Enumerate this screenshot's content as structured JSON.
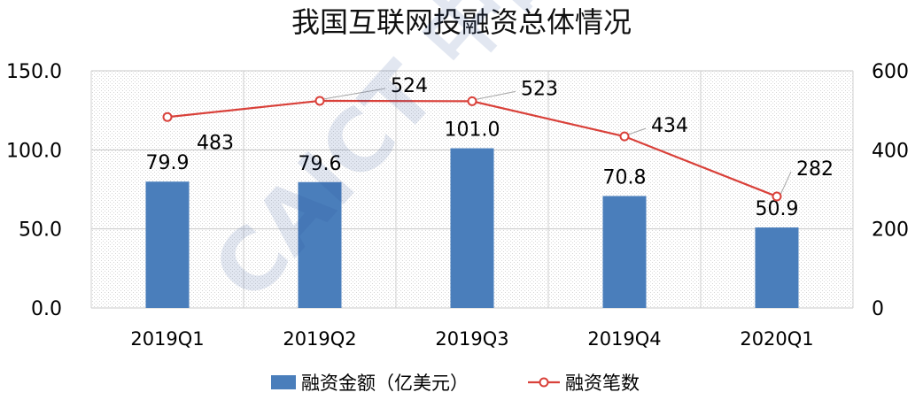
{
  "chart_data": {
    "type": "bar",
    "title": "我国互联网投融资总体情况",
    "categories": [
      "2019Q1",
      "2019Q2",
      "2019Q3",
      "2019Q4",
      "2020Q1"
    ],
    "y_left": {
      "min": 0,
      "max": 150,
      "ticks": [
        "0.0",
        "50.0",
        "100.0",
        "150.0"
      ]
    },
    "y_right": {
      "min": 0,
      "max": 600,
      "ticks": [
        "0",
        "200",
        "400",
        "600"
      ]
    },
    "series": [
      {
        "name": "融资金额（亿美元）",
        "type": "bar",
        "axis": "left",
        "values": [
          79.9,
          79.6,
          101.0,
          70.8,
          50.9
        ],
        "labels": [
          "79.9",
          "79.6",
          "101.0",
          "70.8",
          "50.9"
        ],
        "color": "#4a7ebb"
      },
      {
        "name": "融资笔数",
        "type": "line",
        "axis": "right",
        "values": [
          483,
          524,
          523,
          434,
          282
        ],
        "labels": [
          "483",
          "524",
          "523",
          "434",
          "282"
        ],
        "color": "#d9413a"
      }
    ],
    "grid": true,
    "legend": "bottom"
  },
  "watermark": "CAICT 中国信通院"
}
